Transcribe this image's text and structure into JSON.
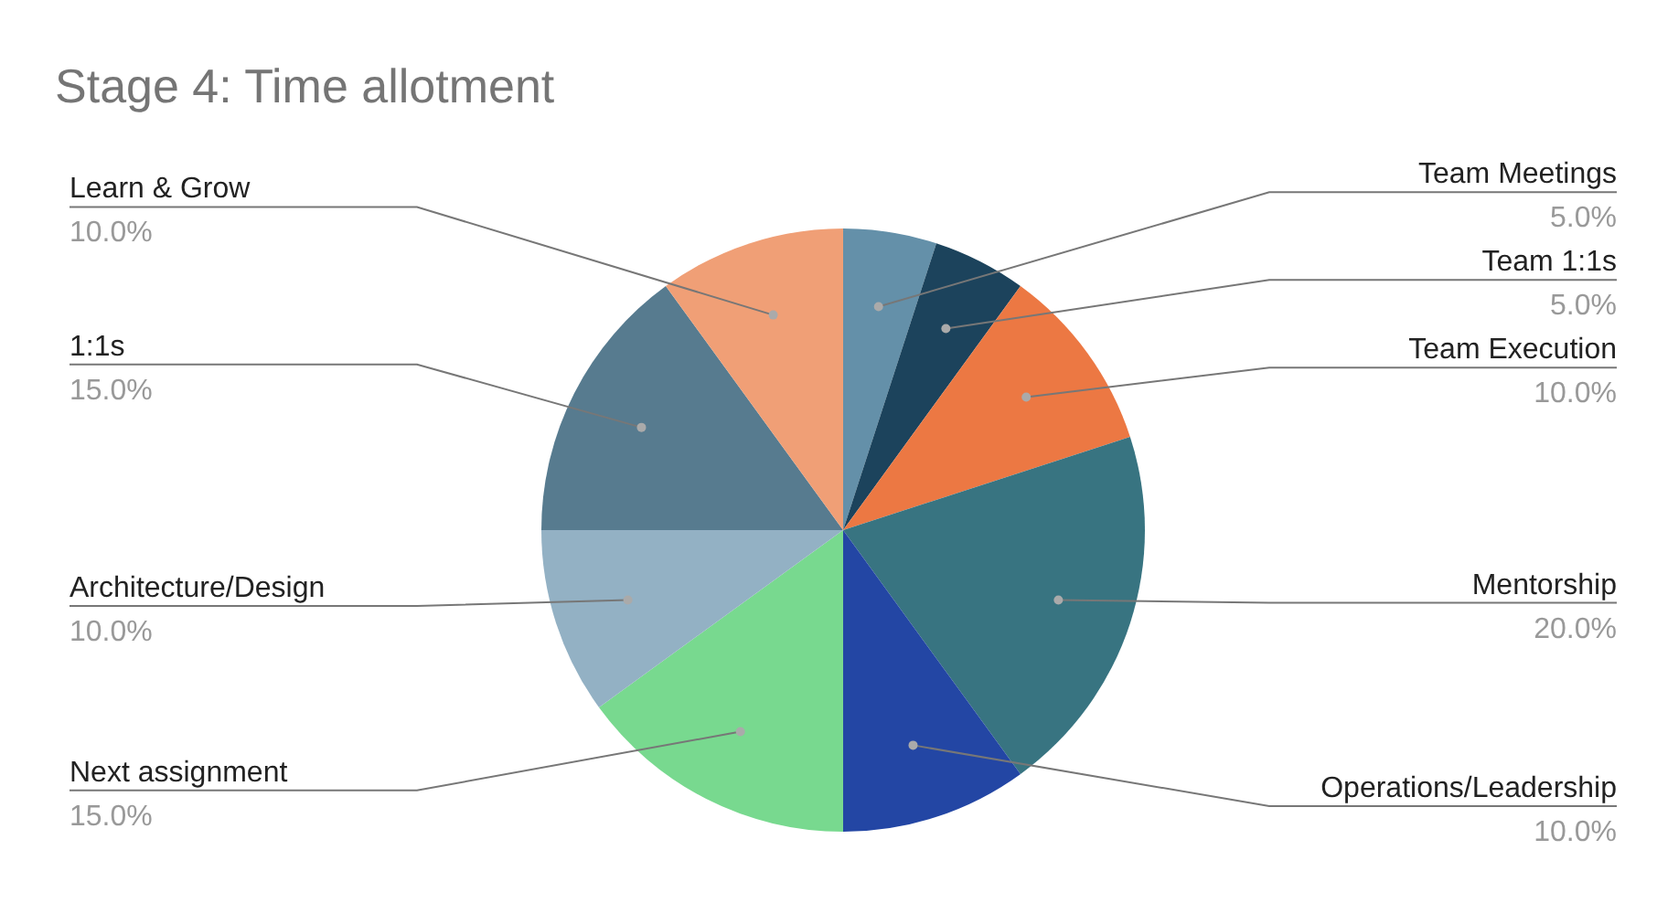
{
  "chart_data": {
    "type": "pie",
    "title": "Stage 4: Time allotment",
    "categories": [
      "Team Meetings",
      "Team 1:1s",
      "Team Execution",
      "Mentorship",
      "Operations/Leadership",
      "Next assignment",
      "Architecture/Design",
      "1:1s",
      "Learn & Grow"
    ],
    "values": [
      5,
      5,
      10,
      20,
      10,
      15,
      10,
      15,
      10
    ],
    "value_labels": [
      "5.0%",
      "5.0%",
      "10.0%",
      "20.0%",
      "10.0%",
      "15.0%",
      "10.0%",
      "15.0%",
      "10.0%"
    ],
    "colors": [
      "#6490a9",
      "#1c435c",
      "#ec7843",
      "#387481",
      "#2346a4",
      "#78d98f",
      "#93b1c4",
      "#577b8f",
      "#f09f76"
    ]
  }
}
